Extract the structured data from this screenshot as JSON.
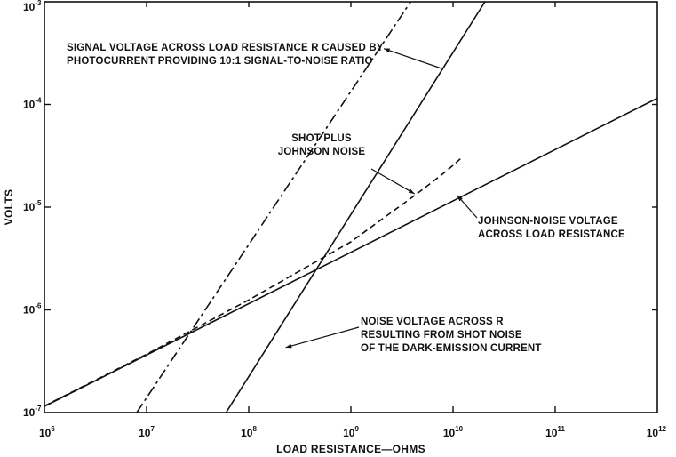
{
  "chart_data": {
    "type": "line",
    "title": "",
    "xlabel": "LOAD RESISTANCE—OHMS",
    "ylabel": "VOLTS",
    "x_scale": "log",
    "y_scale": "log",
    "xlim": [
      1000000.0,
      1000000000000.0
    ],
    "ylim": [
      1e-07,
      0.001
    ],
    "grid": false,
    "x_ticks": [
      {
        "value": 1000000.0,
        "base": "10",
        "exp": "6"
      },
      {
        "value": 10000000.0,
        "base": "10",
        "exp": "7"
      },
      {
        "value": 100000000.0,
        "base": "10",
        "exp": "8"
      },
      {
        "value": 1000000000.0,
        "base": "10",
        "exp": "9"
      },
      {
        "value": 10000000000.0,
        "base": "10",
        "exp": "10"
      },
      {
        "value": 100000000000.0,
        "base": "10",
        "exp": "11"
      },
      {
        "value": 1000000000000.0,
        "base": "10",
        "exp": "12"
      }
    ],
    "y_ticks": [
      {
        "value": 1e-07,
        "base": "10",
        "exp": "-7"
      },
      {
        "value": 1e-06,
        "base": "10",
        "exp": "-6"
      },
      {
        "value": 1e-05,
        "base": "10",
        "exp": "-5"
      },
      {
        "value": 0.0001,
        "base": "10",
        "exp": "-4"
      },
      {
        "value": 0.001,
        "base": "10",
        "exp": "-3"
      }
    ],
    "series": [
      {
        "key": "johnson",
        "style": "solid",
        "x": [
          1000000.0,
          1000000000000.0
        ],
        "y": [
          1.15e-07,
          0.000115
        ]
      },
      {
        "key": "shot",
        "style": "solid",
        "x": [
          60000000.0,
          20500000000.0
        ],
        "y": [
          1e-07,
          0.001
        ]
      },
      {
        "key": "signal",
        "style": "dashdot",
        "x": [
          8000000.0,
          3850000000.0
        ],
        "y": [
          1e-07,
          0.001
        ]
      },
      {
        "key": "combined",
        "style": "dashed",
        "x": [
          1000000.0,
          10000000.0,
          100000000.0,
          1000000000.0,
          2000000000.0,
          4000000000.0,
          6000000000.0,
          8000000000.0,
          10000000000.0,
          12000000000.0
        ],
        "y": [
          1.16e-07,
          3.7e-07,
          1.25e-06,
          4.6e-06,
          7.6e-06,
          1.25e-05,
          1.7e-05,
          2.12e-05,
          2.55e-05,
          3e-05
        ]
      }
    ],
    "annotations": [
      {
        "key": "signal",
        "lines": [
          "SIGNAL VOLTAGE ACROSS LOAD RESISTANCE R CAUSED BY",
          "PHOTOCURRENT PROVIDING 10:1 SIGNAL-TO-NOISE RATIO"
        ],
        "pointer_to": {
          "x": 2100000000.0,
          "y": 0.00035
        }
      },
      {
        "key": "combined",
        "lines": [
          "SHOT PLUS",
          "JOHNSON NOISE"
        ],
        "pointer_to": {
          "x": 4200000000.0,
          "y": 1.35e-05
        }
      },
      {
        "key": "johnson",
        "lines": [
          "JOHNSON-NOISE VOLTAGE",
          "ACROSS LOAD RESISTANCE"
        ],
        "pointer_to": {
          "x": 11000000000.0,
          "y": 1.3e-05
        }
      },
      {
        "key": "shot",
        "lines": [
          "NOISE VOLTAGE ACROSS R",
          "RESULTING FROM SHOT NOISE",
          "OF THE DARK-EMISSION CURRENT"
        ],
        "pointer_to": {
          "x": 230000000.0,
          "y": 4.3e-07
        }
      }
    ]
  }
}
